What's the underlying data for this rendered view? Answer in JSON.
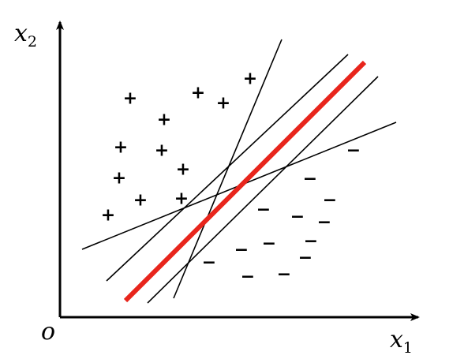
{
  "axes": {
    "x_label": "x",
    "x_sub": "1",
    "y_label": "x",
    "y_sub": "2",
    "origin_label": "o"
  },
  "samples": {
    "positive_symbol": "+",
    "negative_symbol": "−",
    "positive": [
      [
        165,
        125
      ],
      [
        251,
        118
      ],
      [
        283,
        131
      ],
      [
        317,
        100
      ],
      [
        208,
        152
      ],
      [
        153,
        187
      ],
      [
        205,
        191
      ],
      [
        232,
        215
      ],
      [
        151,
        226
      ],
      [
        178,
        254
      ],
      [
        230,
        252
      ],
      [
        137,
        273
      ]
    ],
    "negative": [
      [
        448,
        191
      ],
      [
        393,
        227
      ],
      [
        418,
        254
      ],
      [
        334,
        266
      ],
      [
        377,
        275
      ],
      [
        411,
        282
      ],
      [
        394,
        306
      ],
      [
        341,
        309
      ],
      [
        306,
        317
      ],
      [
        387,
        327
      ],
      [
        265,
        333
      ],
      [
        360,
        348
      ],
      [
        314,
        351
      ]
    ]
  },
  "separators": [
    [
      [
        220,
        378
      ],
      [
        357,
        50
      ]
    ],
    [
      [
        135,
        356
      ],
      [
        441,
        69
      ]
    ],
    [
      [
        187,
        384
      ],
      [
        479,
        97
      ]
    ],
    [
      [
        104,
        316
      ],
      [
        502,
        155
      ]
    ]
  ],
  "optimal_separator": [
    [
      159,
      381
    ],
    [
      462,
      79
    ]
  ],
  "colors": {
    "optimal_line": "#e8251c",
    "lines": "#000000",
    "axes": "#000000"
  }
}
